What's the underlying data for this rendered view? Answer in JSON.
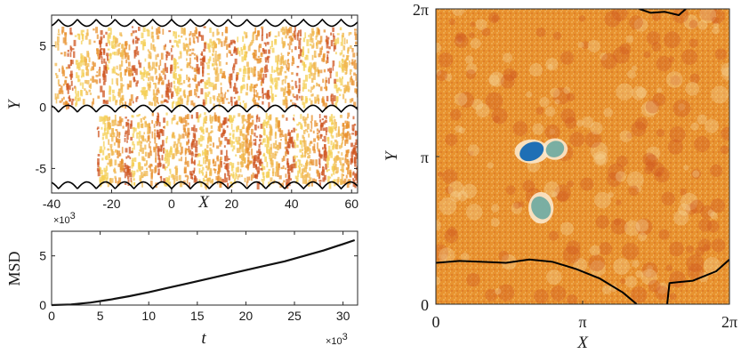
{
  "colors": {
    "orange": "#e8922f",
    "dark_orange": "#cf5520",
    "light_orange": "#f0b74d",
    "yellow": "#f4cf55",
    "blue": "#1f6fb5",
    "teal": "#4f9d9a",
    "boundary": "#000000"
  },
  "chart_data": [
    {
      "type": "scatter",
      "ylabel": "Y",
      "xlabel": "X",
      "xlim": [
        -40,
        62
      ],
      "ylim": [
        -7,
        7.5
      ],
      "xticks": [
        -40,
        -20,
        0,
        20,
        40,
        60
      ],
      "yticks": [
        -5,
        0,
        5
      ],
      "xtick_labels": [
        "-40",
        "-20",
        "0",
        "20",
        "40",
        "60"
      ],
      "ytick_labels": [
        "-5",
        "0",
        "5"
      ],
      "boundary_curves_y": [
        6.9,
        -0.2,
        -6.4
      ],
      "boundary_period": 6.28,
      "trajectory_bands": [
        {
          "x_start": -39,
          "x_end": 62,
          "y_min": 0.3,
          "y_max": 6.6,
          "color": "yellow"
        },
        {
          "x_start": -25,
          "x_end": 62,
          "y_min": -6.2,
          "y_max": -0.4,
          "color": "orange"
        }
      ],
      "grid": false
    },
    {
      "type": "line",
      "ylabel": "MSD",
      "xlabel": "t",
      "x_multiplier_label": "×10",
      "x_multiplier_exp": "3",
      "y_multiplier_label": "×10",
      "y_multiplier_exp": "3",
      "xlim": [
        0,
        31.5
      ],
      "ylim": [
        0,
        7.5
      ],
      "xticks": [
        0,
        5,
        10,
        15,
        20,
        25,
        30
      ],
      "yticks": [
        0,
        5
      ],
      "xtick_labels": [
        "0",
        "5",
        "10",
        "15",
        "20",
        "25",
        "30"
      ],
      "ytick_labels": [
        "0",
        "5"
      ],
      "series": [
        {
          "x": [
            0,
            2,
            4,
            6,
            8,
            10,
            12,
            14,
            16,
            18,
            20,
            22,
            24,
            26,
            28,
            30,
            31.2
          ],
          "y": [
            0,
            0.06,
            0.25,
            0.55,
            0.9,
            1.3,
            1.75,
            2.2,
            2.65,
            3.1,
            3.55,
            4.0,
            4.45,
            5.0,
            5.55,
            6.2,
            6.6
          ]
        }
      ],
      "grid": false
    },
    {
      "type": "heatmap",
      "ylabel": "Y",
      "xlabel": "X",
      "xlim": [
        0,
        6.2832
      ],
      "ylim": [
        0,
        6.2832
      ],
      "xticks": [
        0,
        3.1416,
        6.2832
      ],
      "yticks": [
        0,
        3.1416,
        6.2832
      ],
      "xtick_labels": [
        "0",
        "π",
        "2π"
      ],
      "ytick_labels": [
        "0",
        "π",
        "2π"
      ],
      "background_color": "orange",
      "features": [
        {
          "kind": "island",
          "color": "blue",
          "cx": 2.05,
          "cy": 3.25,
          "rx": 0.27,
          "ry": 0.19
        },
        {
          "kind": "island",
          "color": "teal",
          "cx": 2.55,
          "cy": 3.3,
          "rx": 0.2,
          "ry": 0.17
        },
        {
          "kind": "island",
          "color": "teal",
          "cx": 2.25,
          "cy": 2.05,
          "rx": 0.2,
          "ry": 0.25
        }
      ],
      "boundary_curves": [
        {
          "x": [
            0,
            0.5,
            1.0,
            1.5,
            2.0,
            2.5,
            3.0,
            3.5,
            4.0,
            4.3
          ],
          "y": [
            0.88,
            0.92,
            0.9,
            0.88,
            0.95,
            0.9,
            0.75,
            0.55,
            0.25,
            0
          ]
        },
        {
          "x": [
            4.95,
            5.0,
            5.5,
            6.0,
            6.2832
          ],
          "y": [
            0,
            0.45,
            0.5,
            0.7,
            0.95
          ]
        },
        {
          "x": [
            4.35,
            4.6,
            4.9,
            5.2,
            5.35
          ],
          "y": [
            6.2832,
            6.2,
            6.22,
            6.15,
            6.2832
          ]
        }
      ],
      "grid": false
    }
  ]
}
